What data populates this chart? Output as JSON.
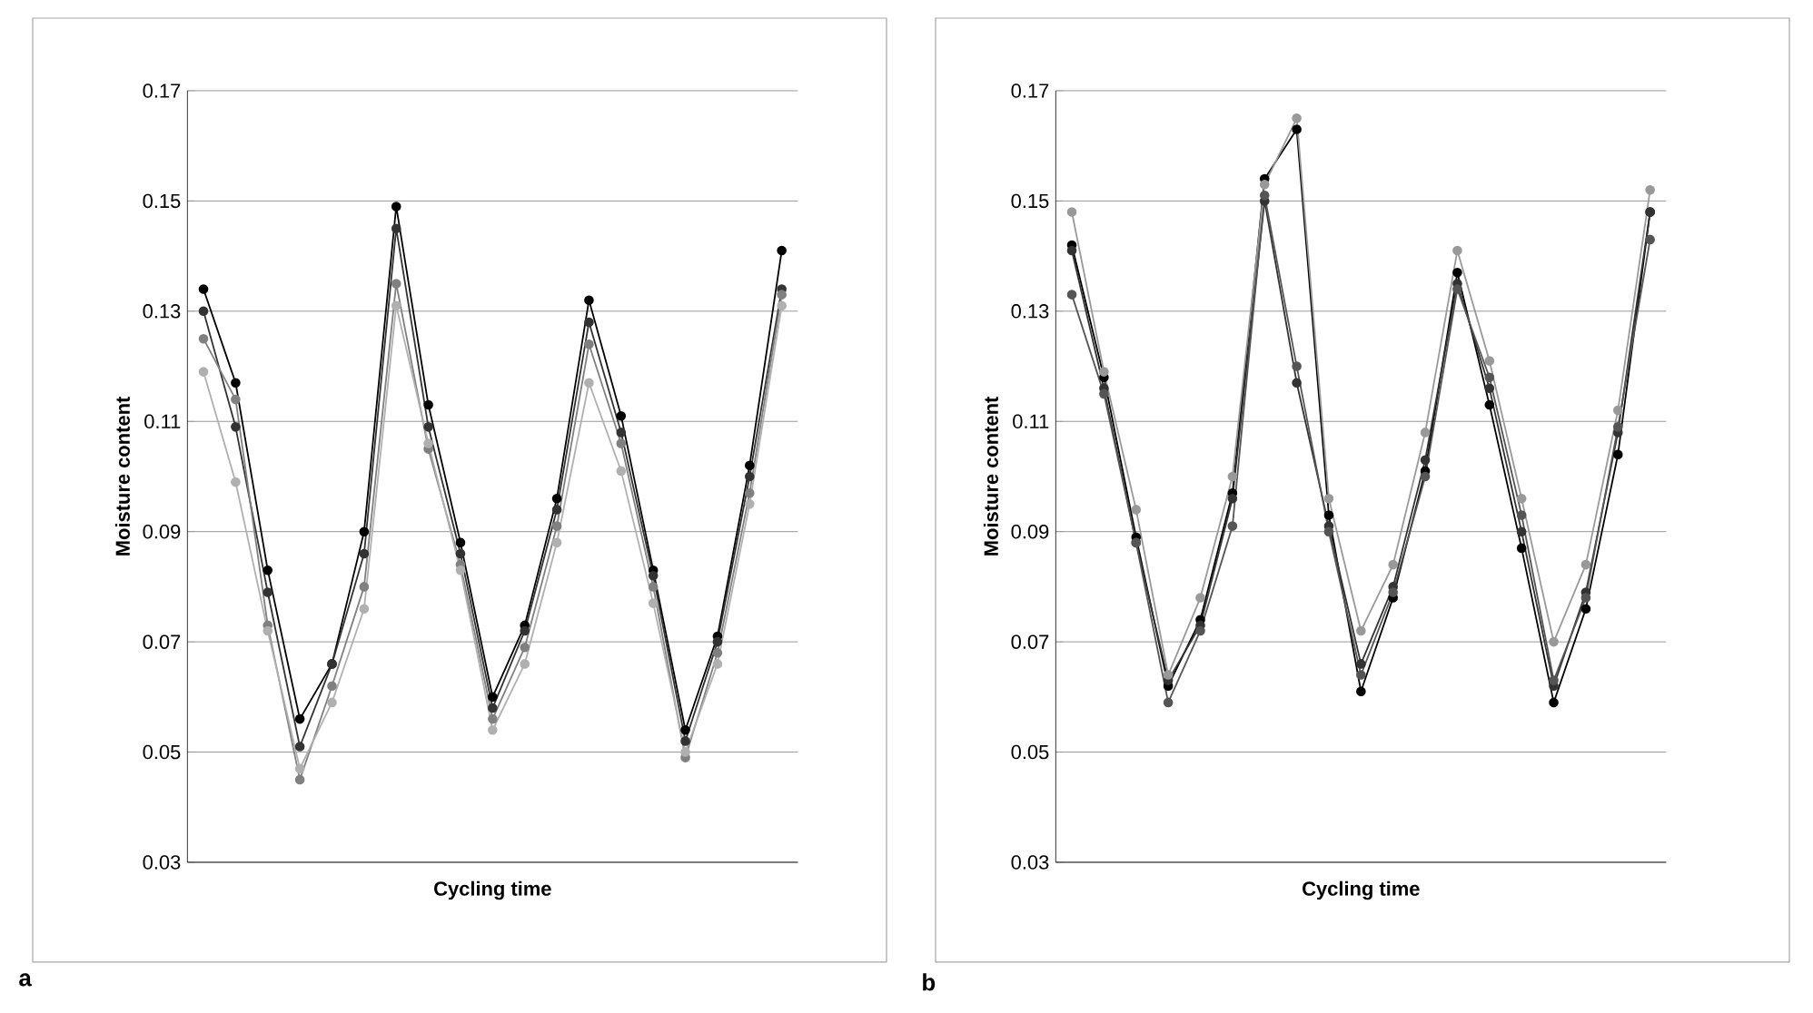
{
  "chart_data": [
    {
      "type": "line",
      "xlabel": "Cycling time",
      "ylabel": "Moisture content",
      "annotations": [
        "a"
      ],
      "categories": [
        null,
        null,
        null,
        null,
        null,
        null,
        null,
        null,
        null,
        null,
        null,
        null,
        null,
        null,
        null,
        null,
        null,
        null,
        null
      ],
      "ylim": [
        0.03,
        0.17
      ],
      "yticks": [
        0.03,
        0.05,
        0.07,
        0.09,
        0.11,
        0.13,
        0.15,
        0.17
      ],
      "grid": "y",
      "marker": "circle",
      "tick_labels": "y",
      "series": [
        {
          "color": "#000000",
          "values": [
            0.134,
            0.117,
            0.083,
            0.056,
            0.066,
            0.09,
            0.149,
            0.113,
            0.088,
            0.06,
            0.073,
            0.096,
            0.132,
            0.111,
            0.083,
            0.054,
            0.071,
            0.102,
            0.141
          ]
        },
        {
          "color": "#333333",
          "values": [
            0.13,
            0.109,
            0.079,
            0.051,
            0.066,
            0.086,
            0.145,
            0.109,
            0.086,
            0.058,
            0.072,
            0.094,
            0.128,
            0.108,
            0.082,
            0.052,
            0.07,
            0.1,
            0.134
          ]
        },
        {
          "color": "#808080",
          "values": [
            0.125,
            0.114,
            0.073,
            0.045,
            0.062,
            0.08,
            0.135,
            0.105,
            0.084,
            0.056,
            0.069,
            0.091,
            0.124,
            0.106,
            0.08,
            0.049,
            0.068,
            0.097,
            0.133
          ]
        },
        {
          "color": "#b0b0b0",
          "values": [
            0.119,
            0.099,
            0.072,
            0.047,
            0.059,
            0.076,
            0.131,
            0.106,
            0.083,
            0.054,
            0.066,
            0.088,
            0.117,
            0.101,
            0.077,
            0.05,
            0.066,
            0.095,
            0.131
          ]
        }
      ]
    },
    {
      "type": "line",
      "xlabel": "Cycling time",
      "ylabel": "Moisture content",
      "annotations": [
        "b"
      ],
      "categories": [
        null,
        null,
        null,
        null,
        null,
        null,
        null,
        null,
        null,
        null,
        null,
        null,
        null,
        null,
        null,
        null,
        null,
        null,
        null
      ],
      "ylim": [
        0.03,
        0.17
      ],
      "yticks": [
        0.03,
        0.05,
        0.07,
        0.09,
        0.11,
        0.13,
        0.15,
        0.17
      ],
      "grid": "y",
      "marker": "circle",
      "tick_labels": "y",
      "series": [
        {
          "color": "#000000",
          "values": [
            0.142,
            0.118,
            0.089,
            0.062,
            0.074,
            0.097,
            0.154,
            0.163,
            0.093,
            0.061,
            0.078,
            0.101,
            0.137,
            0.113,
            0.087,
            0.059,
            0.076,
            0.104,
            0.148
          ]
        },
        {
          "color": "#333333",
          "values": [
            0.141,
            0.116,
            0.088,
            0.063,
            0.073,
            0.096,
            0.15,
            0.117,
            0.091,
            0.066,
            0.08,
            0.103,
            0.135,
            0.116,
            0.09,
            0.062,
            0.079,
            0.108,
            0.148
          ]
        },
        {
          "color": "#555555",
          "values": [
            0.133,
            0.115,
            0.088,
            0.059,
            0.072,
            0.091,
            0.151,
            0.12,
            0.09,
            0.064,
            0.079,
            0.1,
            0.134,
            0.118,
            0.093,
            0.063,
            0.078,
            0.109,
            0.143
          ]
        },
        {
          "color": "#999999",
          "values": [
            0.148,
            0.119,
            0.094,
            0.064,
            0.078,
            0.1,
            0.153,
            0.165,
            0.096,
            0.072,
            0.084,
            0.108,
            0.141,
            0.121,
            0.096,
            0.07,
            0.084,
            0.112,
            0.152
          ]
        }
      ]
    }
  ]
}
